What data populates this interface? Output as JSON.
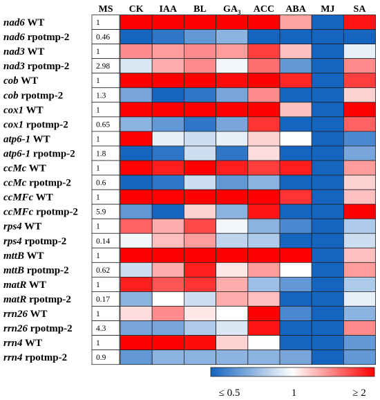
{
  "chart_data": {
    "type": "heatmap",
    "title": "",
    "columns": [
      "MS",
      "CK",
      "IAA",
      "BL",
      "GA",
      "ACC",
      "ABA",
      "MJ",
      "SA"
    ],
    "treatment_columns": [
      "CK",
      "IAA",
      "BL",
      "GA",
      "ACC",
      "ABA",
      "MJ",
      "SA"
    ],
    "ga_subscript": "3",
    "rows": [
      {
        "gene": "nad6",
        "genotype": "WT",
        "ms": "1",
        "values": [
          3.6,
          3.6,
          3.5,
          3.4,
          3.6,
          1.45,
          0.2,
          2.6
        ]
      },
      {
        "gene": "nad6",
        "genotype": "rpotmp-2",
        "ms": "0.46",
        "values": [
          0.3,
          0.4,
          0.5,
          0.6,
          0.3,
          0.25,
          0.2,
          0.3
        ]
      },
      {
        "gene": "nad3",
        "genotype": "WT",
        "ms": "1",
        "values": [
          1.6,
          1.5,
          1.6,
          1.5,
          2.2,
          1.3,
          0.15,
          0.9
        ]
      },
      {
        "gene": "nad3",
        "genotype": "rpotmp-2",
        "ms": "2.98",
        "values": [
          0.85,
          1.4,
          1.6,
          0.95,
          1.8,
          0.5,
          0.2,
          1.6
        ]
      },
      {
        "gene": "cob",
        "genotype": "WT",
        "ms": "1",
        "values": [
          3.4,
          3.3,
          3.0,
          2.7,
          3.5,
          2.4,
          0.2,
          2.2
        ]
      },
      {
        "gene": "cob",
        "genotype": "rpotmp-2",
        "ms": "1.3",
        "values": [
          0.55,
          0.3,
          0.4,
          0.55,
          1.6,
          0.3,
          0.2,
          1.2
        ]
      },
      {
        "gene": "cox1",
        "genotype": "WT",
        "ms": "1",
        "values": [
          3.7,
          3.7,
          3.7,
          3.4,
          3.6,
          1.3,
          0.25,
          3.3
        ]
      },
      {
        "gene": "cox1",
        "genotype": "rpotmp-2",
        "ms": "0.65",
        "values": [
          0.6,
          0.5,
          0.4,
          0.55,
          2.3,
          0.3,
          0.2,
          1.9
        ]
      },
      {
        "gene": "atp6-1",
        "genotype": "WT",
        "ms": "1",
        "values": [
          3.8,
          0.9,
          0.8,
          0.9,
          1.2,
          1.0,
          0.25,
          0.45
        ]
      },
      {
        "gene": "atp6-1",
        "genotype": "rpotmp-2",
        "ms": "1.8",
        "values": [
          0.3,
          0.4,
          0.8,
          0.4,
          1.15,
          0.35,
          0.2,
          0.55
        ]
      },
      {
        "gene": "ccMc",
        "genotype": "WT",
        "ms": "1",
        "values": [
          2.8,
          2.5,
          3.8,
          2.5,
          2.2,
          2.5,
          0.2,
          1.5
        ]
      },
      {
        "gene": "ccMc",
        "genotype": "rpotmp-2",
        "ms": "0.6",
        "values": [
          0.3,
          0.4,
          0.8,
          0.5,
          0.6,
          0.35,
          0.2,
          1.2
        ]
      },
      {
        "gene": "ccMFc",
        "genotype": "WT",
        "ms": "1",
        "values": [
          3.0,
          2.8,
          3.4,
          3.2,
          3.3,
          2.3,
          0.25,
          1.3
        ]
      },
      {
        "gene": "ccMFc",
        "genotype": "rpotmp-2",
        "ms": "5.9",
        "values": [
          0.5,
          0.3,
          1.2,
          0.6,
          2.6,
          0.35,
          0.3,
          3.9
        ]
      },
      {
        "gene": "rps4",
        "genotype": "WT",
        "ms": "1",
        "values": [
          1.9,
          1.4,
          2.1,
          0.95,
          0.6,
          0.45,
          0.3,
          0.7
        ]
      },
      {
        "gene": "rps4",
        "genotype": "rpotmp-2",
        "ms": "0.14",
        "values": [
          0.95,
          1.3,
          1.5,
          0.75,
          0.7,
          0.3,
          0.25,
          0.8
        ]
      },
      {
        "gene": "mttB",
        "genotype": "WT",
        "ms": "1",
        "values": [
          3.5,
          3.5,
          3.6,
          3.6,
          3.4,
          3.0,
          0.2,
          1.3
        ]
      },
      {
        "gene": "mttB",
        "genotype": "rpotmp-2",
        "ms": "0.62",
        "values": [
          0.8,
          1.4,
          2.5,
          1.1,
          1.5,
          1.0,
          0.2,
          1.5
        ]
      },
      {
        "gene": "matR",
        "genotype": "WT",
        "ms": "1",
        "values": [
          2.5,
          2.0,
          2.3,
          1.4,
          0.65,
          0.5,
          0.3,
          0.7
        ]
      },
      {
        "gene": "matR",
        "genotype": "rpotmp-2",
        "ms": "0.17",
        "values": [
          0.6,
          1.0,
          0.8,
          1.4,
          1.3,
          0.35,
          0.2,
          0.9
        ]
      },
      {
        "gene": "rrn26",
        "genotype": "WT",
        "ms": "1",
        "values": [
          1.15,
          1.6,
          1.1,
          1.0,
          3.8,
          0.45,
          0.3,
          0.6
        ]
      },
      {
        "gene": "rrn26",
        "genotype": "rpotmp-2",
        "ms": "4.3",
        "values": [
          0.55,
          0.55,
          0.7,
          0.85,
          2.6,
          0.3,
          0.25,
          1.6
        ]
      },
      {
        "gene": "rrn4",
        "genotype": "WT",
        "ms": "1",
        "values": [
          3.6,
          3.6,
          2.7,
          1.2,
          1.0,
          0.35,
          0.3,
          0.5
        ]
      },
      {
        "gene": "rrn4",
        "genotype": "rpotmp-2",
        "ms": "0.9",
        "values": [
          0.5,
          0.6,
          0.6,
          0.6,
          0.6,
          0.55,
          0.3,
          0.5
        ]
      }
    ],
    "colorbar": {
      "labels": [
        "≤ 0.5",
        "1",
        "≥ 2"
      ],
      "min_color": "#1464c0",
      "mid_color": "#ffffff",
      "max_color": "#ff0000"
    }
  }
}
